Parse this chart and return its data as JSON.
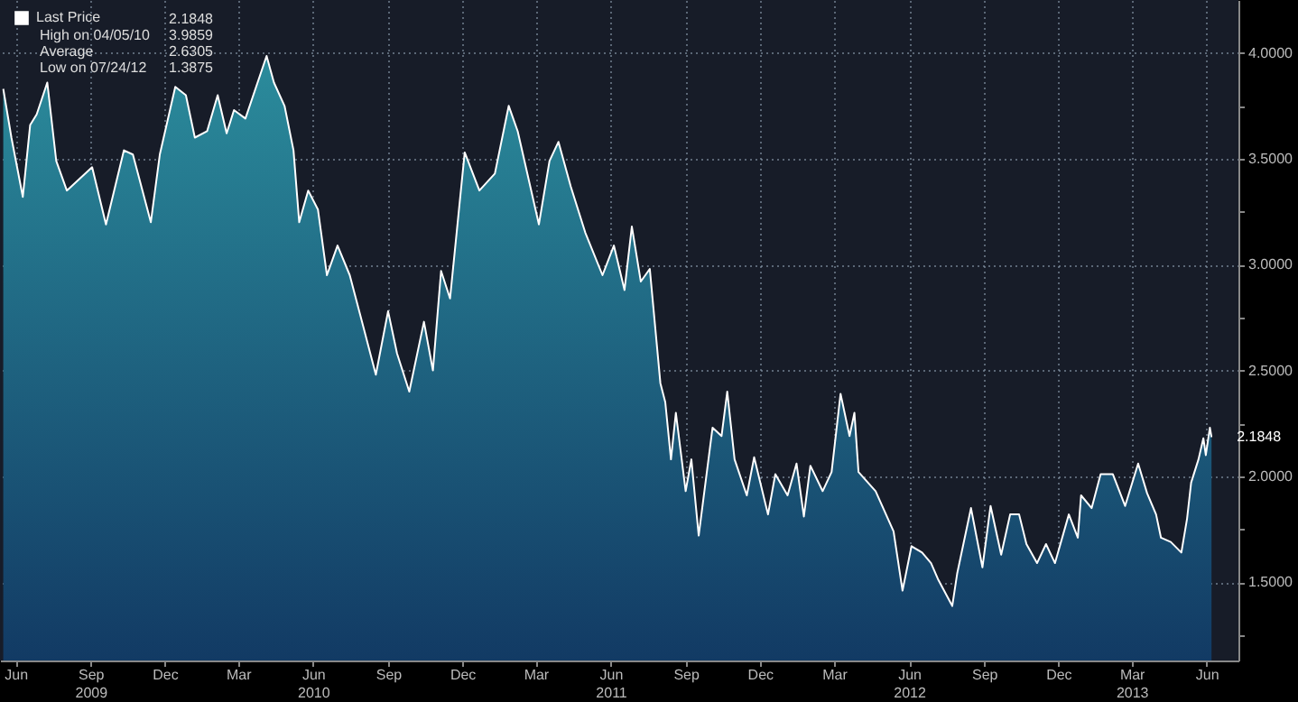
{
  "chart_data": {
    "type": "area",
    "x": [
      "2009-05-17",
      "2009-05-27",
      "2009-06-10",
      "2009-06-19",
      "2009-06-27",
      "2009-07-10",
      "2009-07-21",
      "2009-08-03",
      "2009-09-03",
      "2009-09-20",
      "2009-10-12",
      "2009-10-23",
      "2009-11-14",
      "2009-11-25",
      "2009-12-14",
      "2009-12-27",
      "2010-01-07",
      "2010-01-22",
      "2010-02-04",
      "2010-02-15",
      "2010-02-24",
      "2010-03-10",
      "2010-04-05",
      "2010-04-14",
      "2010-04-27",
      "2010-05-08",
      "2010-05-15",
      "2010-05-26",
      "2010-06-07",
      "2010-06-18",
      "2010-07-01",
      "2010-07-16",
      "2010-07-31",
      "2010-08-17",
      "2010-09-01",
      "2010-09-12",
      "2010-09-27",
      "2010-10-15",
      "2010-10-26",
      "2010-11-05",
      "2010-11-16",
      "2010-12-04",
      "2010-12-22",
      "2011-01-10",
      "2011-01-27",
      "2011-02-07",
      "2011-03-05",
      "2011-03-18",
      "2011-03-29",
      "2011-04-13",
      "2011-05-01",
      "2011-05-22",
      "2011-06-05",
      "2011-06-18",
      "2011-06-27",
      "2011-07-08",
      "2011-07-19",
      "2011-08-01",
      "2011-08-07",
      "2011-08-14",
      "2011-08-20",
      "2011-09-01",
      "2011-09-08",
      "2011-09-17",
      "2011-09-26",
      "2011-10-04",
      "2011-10-15",
      "2011-10-22",
      "2011-10-31",
      "2011-11-15",
      "2011-11-24",
      "2011-12-11",
      "2011-12-20",
      "2012-01-04",
      "2012-01-15",
      "2012-01-24",
      "2012-02-01",
      "2012-02-16",
      "2012-02-27",
      "2012-03-09",
      "2012-03-20",
      "2012-03-26",
      "2012-03-31",
      "2012-04-21",
      "2012-05-13",
      "2012-05-24",
      "2012-06-04",
      "2012-06-17",
      "2012-06-28",
      "2012-07-07",
      "2012-07-24",
      "2012-07-30",
      "2012-08-16",
      "2012-08-26",
      "2012-08-30",
      "2012-09-09",
      "2012-09-22",
      "2012-10-03",
      "2012-10-14",
      "2012-10-23",
      "2012-11-05",
      "2012-11-16",
      "2012-11-27",
      "2012-12-14",
      "2012-12-25",
      "2012-12-29",
      "2013-01-11",
      "2013-01-22",
      "2013-02-06",
      "2013-02-21",
      "2013-03-09",
      "2013-03-20",
      "2013-03-31",
      "2013-04-06",
      "2013-04-18",
      "2013-05-01",
      "2013-05-08",
      "2013-05-13",
      "2013-05-22",
      "2013-05-28",
      "2013-05-31",
      "2013-06-05",
      "2013-06-07"
    ],
    "series": [
      {
        "name": "Last Price",
        "color": "#ffffff",
        "values": [
          3.83,
          3.6,
          3.32,
          3.66,
          3.71,
          3.86,
          3.49,
          3.35,
          3.46,
          3.19,
          3.54,
          3.52,
          3.2,
          3.52,
          3.84,
          3.8,
          3.6,
          3.63,
          3.8,
          3.62,
          3.73,
          3.69,
          3.9859,
          3.86,
          3.75,
          3.54,
          3.2,
          3.35,
          3.26,
          2.95,
          3.09,
          2.95,
          2.73,
          2.48,
          2.78,
          2.58,
          2.4,
          2.73,
          2.5,
          2.97,
          2.84,
          3.53,
          3.35,
          3.43,
          3.75,
          3.63,
          3.19,
          3.49,
          3.58,
          3.37,
          3.15,
          2.95,
          3.09,
          2.88,
          3.18,
          2.92,
          2.98,
          2.44,
          2.35,
          2.08,
          2.3,
          1.93,
          2.08,
          1.72,
          1.99,
          2.23,
          2.19,
          2.4,
          2.08,
          1.91,
          2.09,
          1.82,
          2.01,
          1.91,
          2.06,
          1.81,
          2.05,
          1.93,
          2.02,
          2.39,
          2.19,
          2.3,
          2.02,
          1.93,
          1.74,
          1.46,
          1.67,
          1.64,
          1.59,
          1.51,
          1.3875,
          1.54,
          1.85,
          1.65,
          1.57,
          1.86,
          1.63,
          1.82,
          1.82,
          1.68,
          1.59,
          1.68,
          1.59,
          1.82,
          1.71,
          1.91,
          1.85,
          2.01,
          2.01,
          1.86,
          2.06,
          1.92,
          1.82,
          1.71,
          1.69,
          1.64,
          1.8,
          1.97,
          2.08,
          2.18,
          2.1,
          2.23,
          2.1848
        ]
      }
    ],
    "xlim": [
      "2009-05-13",
      "2013-07-10"
    ],
    "xticks": [
      {
        "value": "2009-06-01",
        "label": "Jun"
      },
      {
        "value": "2009-09-01",
        "label": "Sep\n2009"
      },
      {
        "value": "2009-12-01",
        "label": "Dec"
      },
      {
        "value": "2010-03-01",
        "label": "Mar"
      },
      {
        "value": "2010-06-01",
        "label": "Jun\n2010"
      },
      {
        "value": "2010-09-01",
        "label": "Sep"
      },
      {
        "value": "2010-12-01",
        "label": "Dec"
      },
      {
        "value": "2011-03-01",
        "label": "Mar"
      },
      {
        "value": "2011-06-01",
        "label": "Jun\n2011"
      },
      {
        "value": "2011-09-01",
        "label": "Sep"
      },
      {
        "value": "2011-12-01",
        "label": "Dec"
      },
      {
        "value": "2012-03-01",
        "label": "Mar"
      },
      {
        "value": "2012-06-01",
        "label": "Jun\n2012"
      },
      {
        "value": "2012-09-01",
        "label": "Sep"
      },
      {
        "value": "2012-12-01",
        "label": "Dec"
      },
      {
        "value": "2013-03-01",
        "label": "Mar\n2013"
      },
      {
        "value": "2013-06-01",
        "label": "Jun"
      }
    ],
    "ylim": [
      1.13,
      4.25
    ],
    "yticks": [
      {
        "value": 1.25,
        "label": null
      },
      {
        "value": 1.5,
        "label": "1.5000"
      },
      {
        "value": 1.75,
        "label": null
      },
      {
        "value": 2,
        "label": "2.0000"
      },
      {
        "value": 2.25,
        "label": null
      },
      {
        "value": 2.5,
        "label": "2.5000"
      },
      {
        "value": 2.75,
        "label": null
      },
      {
        "value": 3,
        "label": "3.0000"
      },
      {
        "value": 3.25,
        "label": null
      },
      {
        "value": 3.5,
        "label": "3.5000"
      },
      {
        "value": 3.75,
        "label": null
      },
      {
        "value": 4,
        "label": "4.0000"
      }
    ],
    "grid": true,
    "legend": "top left",
    "annotations": [
      "2.1848",
      "High on 04/05/10 3.9859",
      "Average 2.6305",
      "Low on 07/24/12 1.3875",
      {
        "text": "2.1848",
        "x": "2013-06-07",
        "y": 2.1848
      }
    ]
  }
}
